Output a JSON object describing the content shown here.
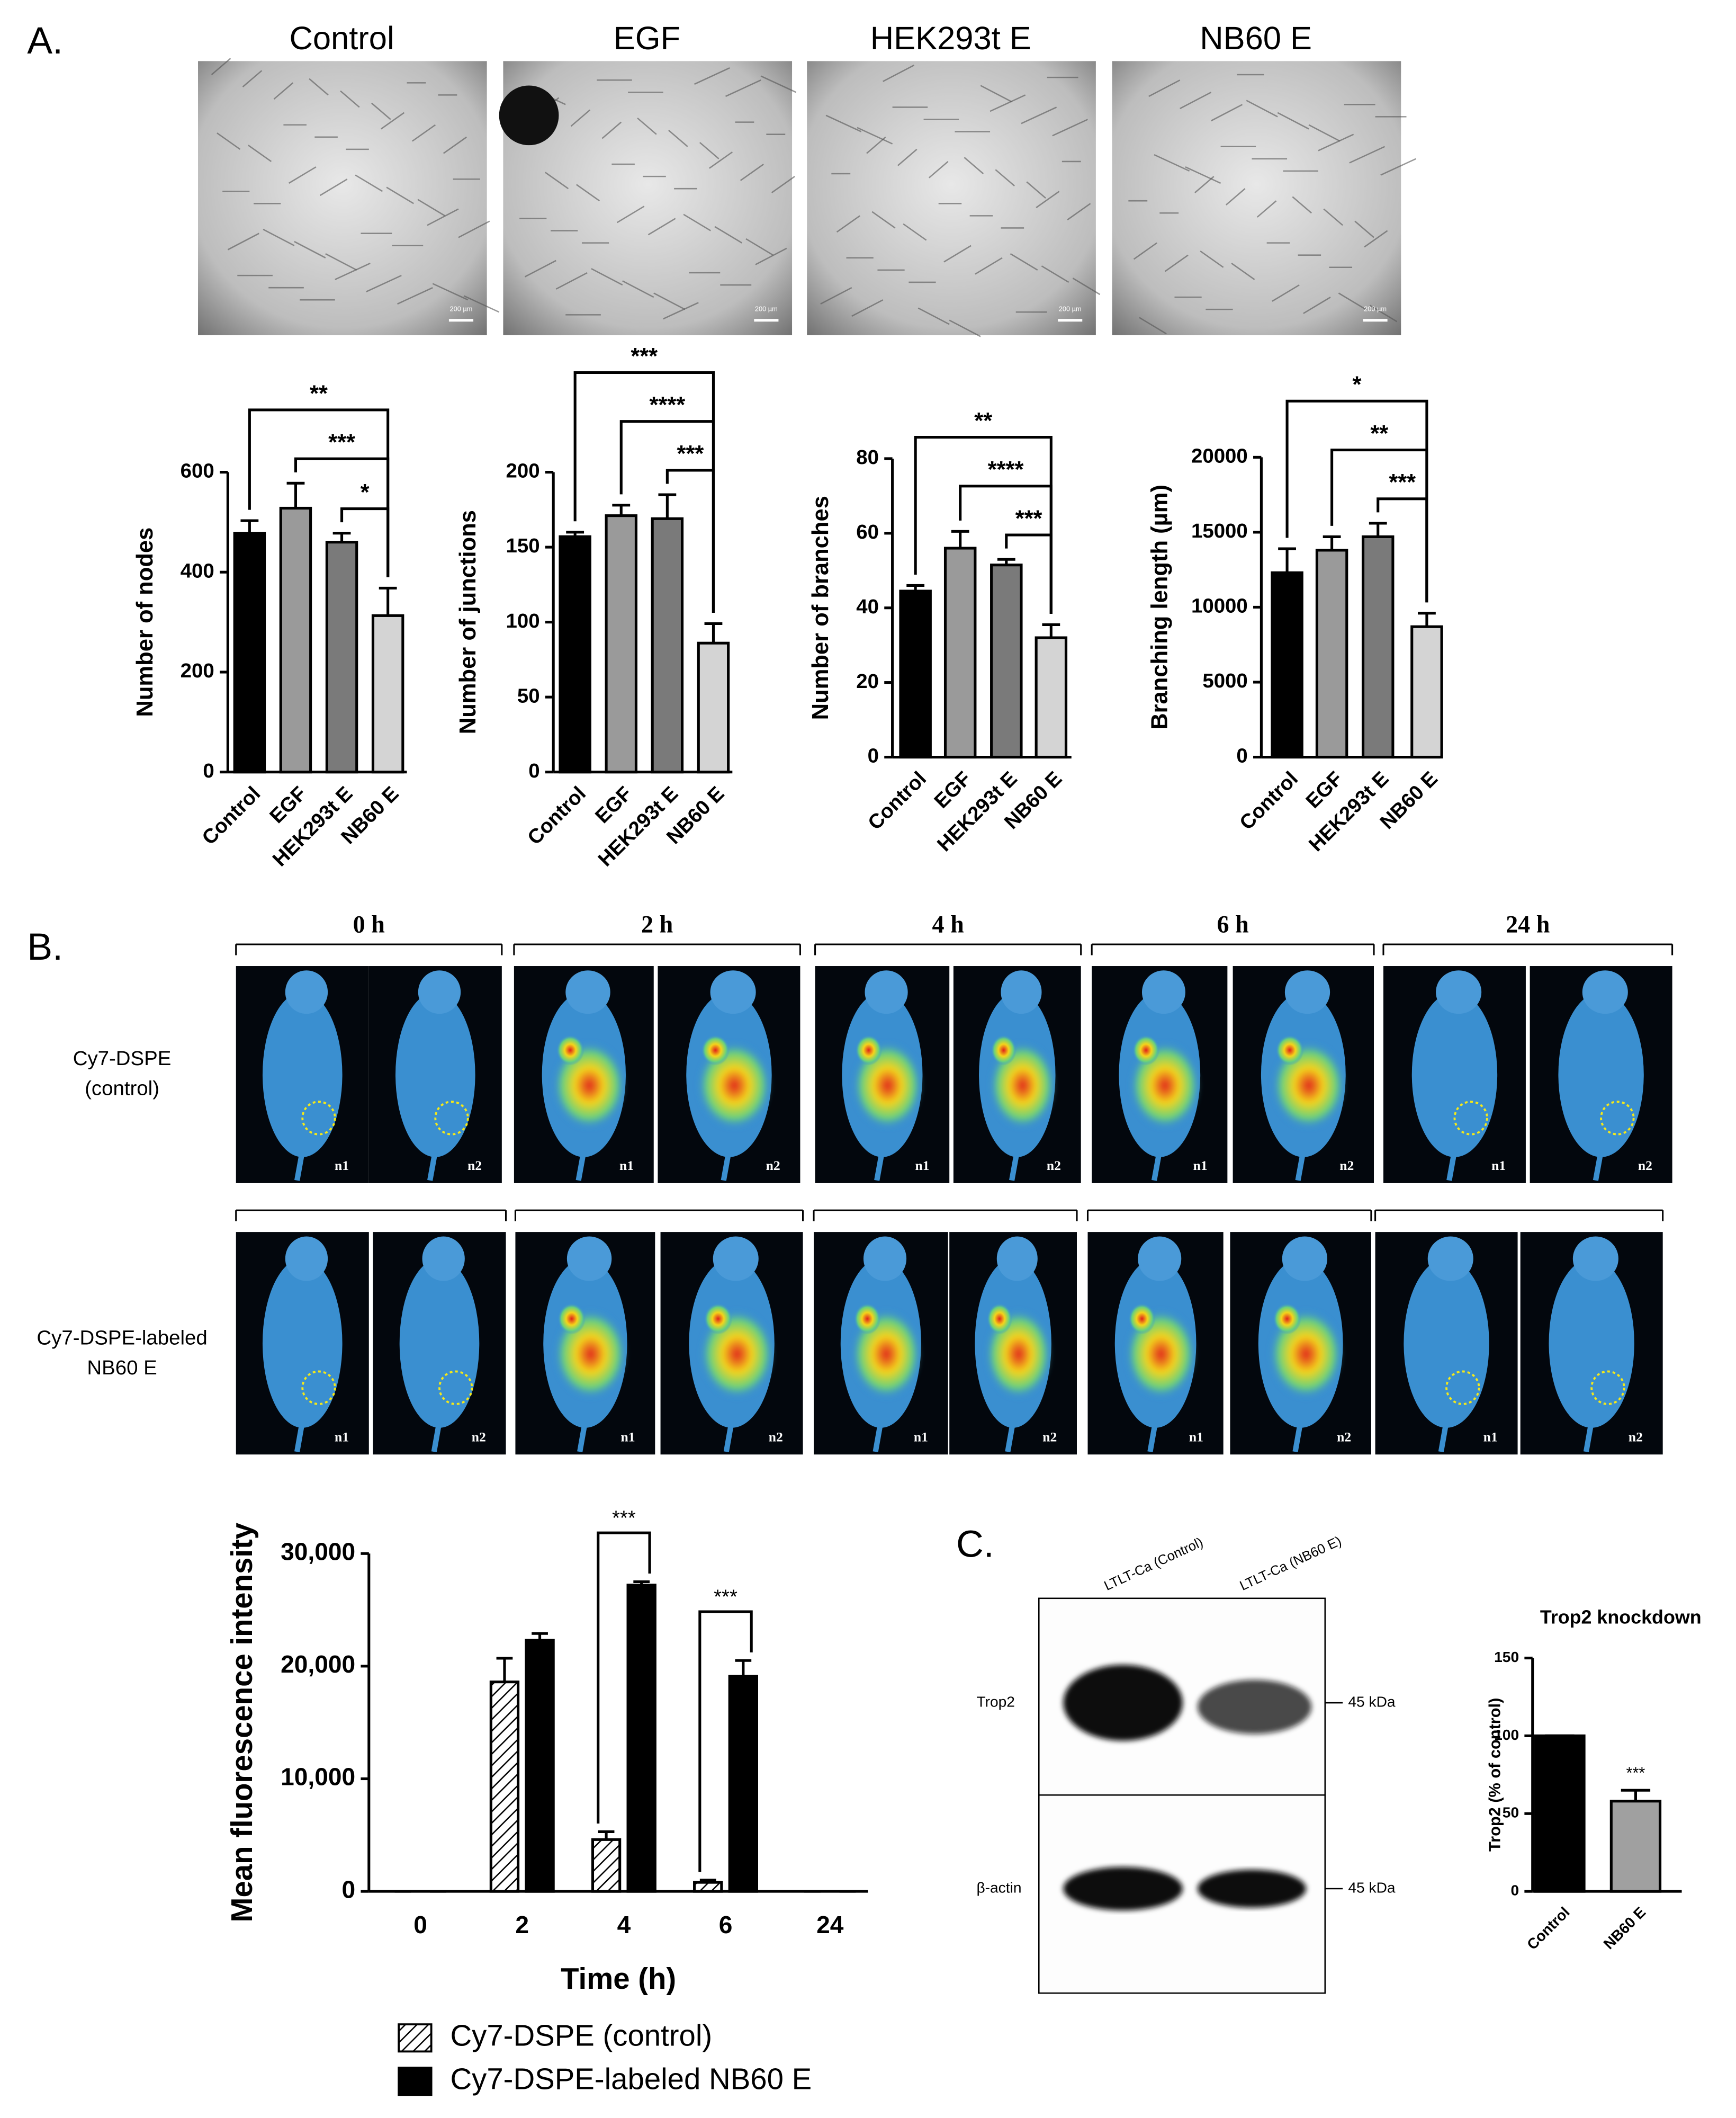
{
  "panel_labels": [
    "A.",
    "B.",
    "C."
  ],
  "microscopy": {
    "titles": [
      "Control",
      "EGF",
      "HEK293t E",
      "NB60 E"
    ],
    "scale_bar": "200 µm"
  },
  "imaging": {
    "time_points": [
      "0 h",
      "2 h",
      "4 h",
      "6 h",
      "24 h"
    ],
    "rows": [
      [
        "Cy7-DSPE",
        "(control)"
      ],
      [
        "Cy7-DSPE-labeled",
        "NB60 E"
      ]
    ],
    "mice": [
      "n1",
      "n2"
    ]
  },
  "blot": {
    "lanes": [
      "LTLT-Ca (Control)",
      "LTLT-Ca (NB60 E)"
    ],
    "proteins": [
      "Trop2",
      "β-actin"
    ],
    "marker": "45 kDa"
  },
  "chart_data": [
    {
      "type": "bar",
      "categories": [
        "Control",
        "EGF",
        "HEK293t E",
        "NB60 E"
      ],
      "values": [
        478,
        528,
        460,
        313
      ],
      "errors": [
        25,
        50,
        18,
        55
      ],
      "colors": [
        "#000000",
        "#9a9a9a",
        "#7a7a7a",
        "#d4d4d4"
      ],
      "ylabel": "Number of nodes",
      "ylim": [
        0,
        600
      ],
      "yticks": [
        0,
        200,
        400,
        600
      ],
      "significance": [
        {
          "between": [
            "Control",
            "NB60 E"
          ],
          "label": "**"
        },
        {
          "between": [
            "EGF",
            "NB60 E"
          ],
          "label": "***"
        },
        {
          "between": [
            "HEK293t E",
            "NB60 E"
          ],
          "label": "*"
        }
      ]
    },
    {
      "type": "bar",
      "categories": [
        "Control",
        "EGF",
        "HEK293t E",
        "NB60 E"
      ],
      "values": [
        157,
        171,
        169,
        86
      ],
      "errors": [
        3,
        7,
        16,
        13
      ],
      "colors": [
        "#000000",
        "#9a9a9a",
        "#7a7a7a",
        "#d4d4d4"
      ],
      "ylabel": "Number of junctions",
      "ylim": [
        0,
        200
      ],
      "yticks": [
        0,
        50,
        100,
        150,
        200
      ],
      "significance": [
        {
          "between": [
            "Control",
            "NB60 E"
          ],
          "label": "***"
        },
        {
          "between": [
            "EGF",
            "NB60 E"
          ],
          "label": "****"
        },
        {
          "between": [
            "HEK293t E",
            "NB60 E"
          ],
          "label": "***"
        }
      ]
    },
    {
      "type": "bar",
      "categories": [
        "Control",
        "EGF",
        "HEK293t E",
        "NB60 E"
      ],
      "values": [
        44.5,
        56,
        51.5,
        32
      ],
      "errors": [
        1.5,
        4.5,
        1.5,
        3.5
      ],
      "colors": [
        "#000000",
        "#9a9a9a",
        "#7a7a7a",
        "#d4d4d4"
      ],
      "ylabel": "Number of branches",
      "ylim": [
        0,
        80
      ],
      "yticks": [
        0,
        20,
        40,
        60,
        80
      ],
      "significance": [
        {
          "between": [
            "Control",
            "NB60 E"
          ],
          "label": "**"
        },
        {
          "between": [
            "EGF",
            "NB60 E"
          ],
          "label": "****"
        },
        {
          "between": [
            "HEK293t E",
            "NB60 E"
          ],
          "label": "***"
        }
      ]
    },
    {
      "type": "bar",
      "categories": [
        "Control",
        "EGF",
        "HEK293t E",
        "NB60 E"
      ],
      "values": [
        12300,
        13800,
        14700,
        8700
      ],
      "errors": [
        1600,
        900,
        900,
        900
      ],
      "colors": [
        "#000000",
        "#9a9a9a",
        "#7a7a7a",
        "#d4d4d4"
      ],
      "ylabel": "Branching length (µm)",
      "ylim": [
        0,
        20000
      ],
      "yticks": [
        0,
        5000,
        10000,
        15000,
        20000
      ],
      "significance": [
        {
          "between": [
            "Control",
            "NB60 E"
          ],
          "label": "*"
        },
        {
          "between": [
            "EGF",
            "NB60 E"
          ],
          "label": "**"
        },
        {
          "between": [
            "HEK293t E",
            "NB60 E"
          ],
          "label": "***"
        }
      ]
    },
    {
      "type": "bar",
      "categories": [
        "0",
        "2",
        "4",
        "6",
        "24"
      ],
      "xlabel": "Time (h)",
      "ylabel": "Mean fluorescence intensity",
      "series": [
        {
          "name": "Cy7-DSPE (control)",
          "color": "#000000",
          "pattern": "hatch",
          "values": [
            0,
            18600,
            4600,
            800,
            0
          ],
          "errors": [
            0,
            2100,
            700,
            200,
            0
          ]
        },
        {
          "name": "Cy7-DSPE-labeled NB60 E",
          "color": "#000000",
          "values": [
            0,
            22300,
            27200,
            19100,
            0
          ],
          "errors": [
            0,
            600,
            300,
            1400,
            0
          ]
        }
      ],
      "ylim": [
        0,
        30000
      ],
      "yticks": [
        0,
        {
          "value": 10000,
          "label": "10,000"
        },
        {
          "value": 20000,
          "label": "20,000"
        },
        {
          "value": 30000,
          "label": "30,000"
        }
      ],
      "significance": [
        {
          "category": "4",
          "label": "***"
        },
        {
          "category": "6",
          "label": "***"
        }
      ],
      "legend": "bottom"
    },
    {
      "type": "bar",
      "title": "Trop2 knockdown",
      "categories": [
        "Control",
        "NB60 E"
      ],
      "values": [
        100,
        58
      ],
      "errors": [
        0,
        7
      ],
      "colors": [
        "#000000",
        "#a0a0a0"
      ],
      "ylabel": "Trop2 (% of control)",
      "ylim": [
        0,
        150
      ],
      "yticks": [
        0,
        50,
        100,
        150
      ],
      "annotations": [
        {
          "category": "NB60 E",
          "label": "***"
        }
      ]
    }
  ]
}
